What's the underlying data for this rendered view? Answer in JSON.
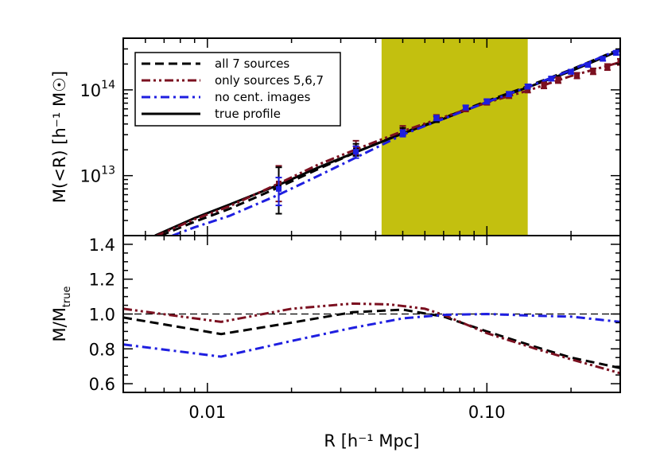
{
  "chart_data": [
    {
      "type": "line",
      "panel": "top",
      "ylabel": "M(<R) [h⁻¹ M☉]",
      "yscale": "log",
      "xscale": "log",
      "xlim": [
        0.005,
        0.3
      ],
      "ylim": [
        2000000000000.0,
        400000000000000.0
      ],
      "y_ticks": [
        {
          "value": 10000000000000.0,
          "label": "10",
          "exp": "13"
        },
        {
          "value": 100000000000000.0,
          "label": "10",
          "exp": "14"
        }
      ],
      "shaded_region": {
        "x": [
          0.042,
          0.14
        ],
        "color": "#c3c00f"
      },
      "legend": {
        "position": "top-left",
        "entries": [
          {
            "label": "all 7 sources",
            "color": "#000000",
            "style": "dashed"
          },
          {
            "label": "only sources 5,6,7",
            "color": "#7b1020",
            "style": "dash-dot-dot"
          },
          {
            "label": "no cent. images",
            "color": "#1e1ee0",
            "style": "dash-dot"
          },
          {
            "label": "true profile",
            "color": "#000000",
            "style": "solid"
          }
        ]
      },
      "series": [
        {
          "name": "true profile",
          "color": "#000000",
          "style": "solid",
          "x": [
            0.0065,
            0.009,
            0.012,
            0.018,
            0.025,
            0.035,
            0.05,
            0.07,
            0.1,
            0.14,
            0.2,
            0.3
          ],
          "y": [
            2000000000000.0,
            3200000000000.0,
            4600000000000.0,
            7800000000000.0,
            12500000000000.0,
            19500000000000.0,
            31000000000000.0,
            46000000000000.0,
            72000000000000.0,
            107000000000000.0,
            165000000000000.0,
            290000000000000.0
          ]
        },
        {
          "name": "all 7 sources",
          "color": "#000000",
          "style": "dashed",
          "x": [
            0.0068,
            0.009,
            0.012,
            0.018,
            0.025,
            0.035,
            0.05,
            0.07,
            0.1,
            0.14,
            0.2,
            0.3
          ],
          "y": [
            2000000000000.0,
            2900000000000.0,
            4100000000000.0,
            7300000000000.0,
            12000000000000.0,
            19500000000000.0,
            31500000000000.0,
            47000000000000.0,
            74000000000000.0,
            110000000000000.0,
            172000000000000.0,
            300000000000000.0
          ]
        },
        {
          "name": "only sources 5,6,7",
          "color": "#7b1020",
          "style": "dash-dot-dot",
          "x": [
            0.0066,
            0.009,
            0.012,
            0.018,
            0.025,
            0.035,
            0.05,
            0.07,
            0.1,
            0.14,
            0.2,
            0.3
          ],
          "y": [
            2000000000000.0,
            3100000000000.0,
            4400000000000.0,
            8100000000000.0,
            13500000000000.0,
            21000000000000.0,
            33000000000000.0,
            48000000000000.0,
            71000000000000.0,
            98000000000000.0,
            145000000000000.0,
            210000000000000.0
          ]
        },
        {
          "name": "no cent. images",
          "color": "#1e1ee0",
          "style": "dash-dot",
          "x": [
            0.0075,
            0.009,
            0.012,
            0.018,
            0.025,
            0.035,
            0.05,
            0.07,
            0.1,
            0.14,
            0.2,
            0.3
          ],
          "y": [
            2000000000000.0,
            2500000000000.0,
            3400000000000.0,
            6000000000000.0,
            10000000000000.0,
            17000000000000.0,
            30000000000000.0,
            46000000000000.0,
            72000000000000.0,
            108000000000000.0,
            170000000000000.0,
            300000000000000.0
          ]
        }
      ],
      "error_bars": [
        {
          "series": "only sources 5,6,7",
          "color": "#7b1020",
          "points": [
            [
              0.018,
              8100000000000.0,
              5000000000000.0,
              13000000000000.0
            ],
            [
              0.034,
              21000000000000.0,
              17500000000000.0,
              25500000000000.0
            ],
            [
              0.05,
              33000000000000.0,
              30000000000000.0,
              38000000000000.0
            ],
            [
              0.066,
              46000000000000.0,
              43000000000000.0,
              51000000000000.0
            ],
            [
              0.084,
              60000000000000.0,
              56000000000000.0,
              65000000000000.0
            ],
            [
              0.1,
              71000000000000.0,
              67000000000000.0,
              77000000000000.0
            ],
            [
              0.12,
              86000000000000.0,
              80000000000000.0,
              93000000000000.0
            ],
            [
              0.14,
              100000000000000.0,
              93000000000000.0,
              108000000000000.0
            ],
            [
              0.16,
              113000000000000.0,
              104000000000000.0,
              122000000000000.0
            ],
            [
              0.18,
              130000000000000.0,
              120000000000000.0,
              140000000000000.0
            ],
            [
              0.21,
              147000000000000.0,
              136000000000000.0,
              158000000000000.0
            ],
            [
              0.24,
              165000000000000.0,
              152000000000000.0,
              178000000000000.0
            ],
            [
              0.27,
              185000000000000.0,
              170000000000000.0,
              200000000000000.0
            ],
            [
              0.3,
              210000000000000.0,
              195000000000000.0,
              230000000000000.0
            ]
          ]
        },
        {
          "series": "all 7 sources",
          "color": "#000000",
          "points": [
            [
              0.018,
              7300000000000.0,
              3600000000000.0,
              12500000000000.0
            ],
            [
              0.034,
              19500000000000.0,
              17000000000000.0,
              23500000000000.0
            ],
            [
              0.05,
              31500000000000.0,
              29000000000000.0,
              36000000000000.0
            ],
            [
              0.066,
              45000000000000.0,
              42000000000000.0,
              49000000000000.0
            ]
          ]
        },
        {
          "series": "no cent. images",
          "color": "#1e1ee0",
          "points": [
            [
              0.018,
              7000000000000.0,
              4500000000000.0,
              9500000000000.0
            ],
            [
              0.034,
              19000000000000.0,
              16000000000000.0,
              22000000000000.0
            ],
            [
              0.05,
              31000000000000.0,
              28500000000000.0,
              34000000000000.0
            ],
            [
              0.066,
              47000000000000.0,
              44000000000000.0,
              50000000000000.0
            ],
            [
              0.084,
              62000000000000.0,
              59000000000000.0,
              66000000000000.0
            ],
            [
              0.1,
              73000000000000.0,
              69000000000000.0,
              78000000000000.0
            ],
            [
              0.12,
              89000000000000.0,
              84000000000000.0,
              95000000000000.0
            ],
            [
              0.14,
              109000000000000.0,
              103000000000000.0,
              116000000000000.0
            ],
            [
              0.17,
              135000000000000.0,
              128000000000000.0,
              143000000000000.0
            ],
            [
              0.2,
              162000000000000.0,
              154000000000000.0,
              172000000000000.0
            ],
            [
              0.23,
              195000000000000.0,
              185000000000000.0,
              205000000000000.0
            ],
            [
              0.26,
              230000000000000.0,
              218000000000000.0,
              242000000000000.0
            ],
            [
              0.29,
              270000000000000.0,
              255000000000000.0,
              285000000000000.0
            ]
          ]
        }
      ]
    },
    {
      "type": "line",
      "panel": "bottom",
      "xlabel": "R [h⁻¹ Mpc]",
      "ylabel": "M/M",
      "ylabel_sub": "true",
      "xscale": "log",
      "xlim": [
        0.005,
        0.3
      ],
      "ylim": [
        0.55,
        1.45
      ],
      "x_ticks": [
        {
          "value": 0.01,
          "label": "0.01"
        },
        {
          "value": 0.1,
          "label": "0.10"
        }
      ],
      "y_ticks": [
        {
          "value": 0.6,
          "label": "0.6"
        },
        {
          "value": 0.8,
          "label": "0.8"
        },
        {
          "value": 1.0,
          "label": "1.0"
        },
        {
          "value": 1.2,
          "label": "1.2"
        },
        {
          "value": 1.4,
          "label": "1.4"
        }
      ],
      "reference_line": {
        "y": 1.0,
        "color": "#000000",
        "style": "dashed"
      },
      "series": [
        {
          "name": "all 7 sources",
          "color": "#000000",
          "style": "dashed",
          "x": [
            0.005,
            0.0112,
            0.02,
            0.033,
            0.05,
            0.07,
            0.1,
            0.15,
            0.2,
            0.3
          ],
          "y": [
            0.98,
            0.885,
            0.95,
            1.01,
            1.025,
            0.985,
            0.9,
            0.81,
            0.75,
            0.69
          ]
        },
        {
          "name": "only sources 5,6,7",
          "color": "#7b1020",
          "style": "dash-dot-dot",
          "x": [
            0.005,
            0.0112,
            0.02,
            0.033,
            0.045,
            0.06,
            0.07,
            0.1,
            0.15,
            0.2,
            0.3
          ],
          "y": [
            1.03,
            0.955,
            1.03,
            1.06,
            1.055,
            1.03,
            0.995,
            0.89,
            0.8,
            0.74,
            0.66
          ]
        },
        {
          "name": "no cent. images",
          "color": "#1e1ee0",
          "style": "dash-dot",
          "x": [
            0.005,
            0.0112,
            0.02,
            0.033,
            0.05,
            0.07,
            0.1,
            0.15,
            0.2,
            0.3
          ],
          "y": [
            0.825,
            0.755,
            0.845,
            0.92,
            0.975,
            0.995,
            1.0,
            0.99,
            0.985,
            0.955
          ]
        }
      ]
    }
  ]
}
